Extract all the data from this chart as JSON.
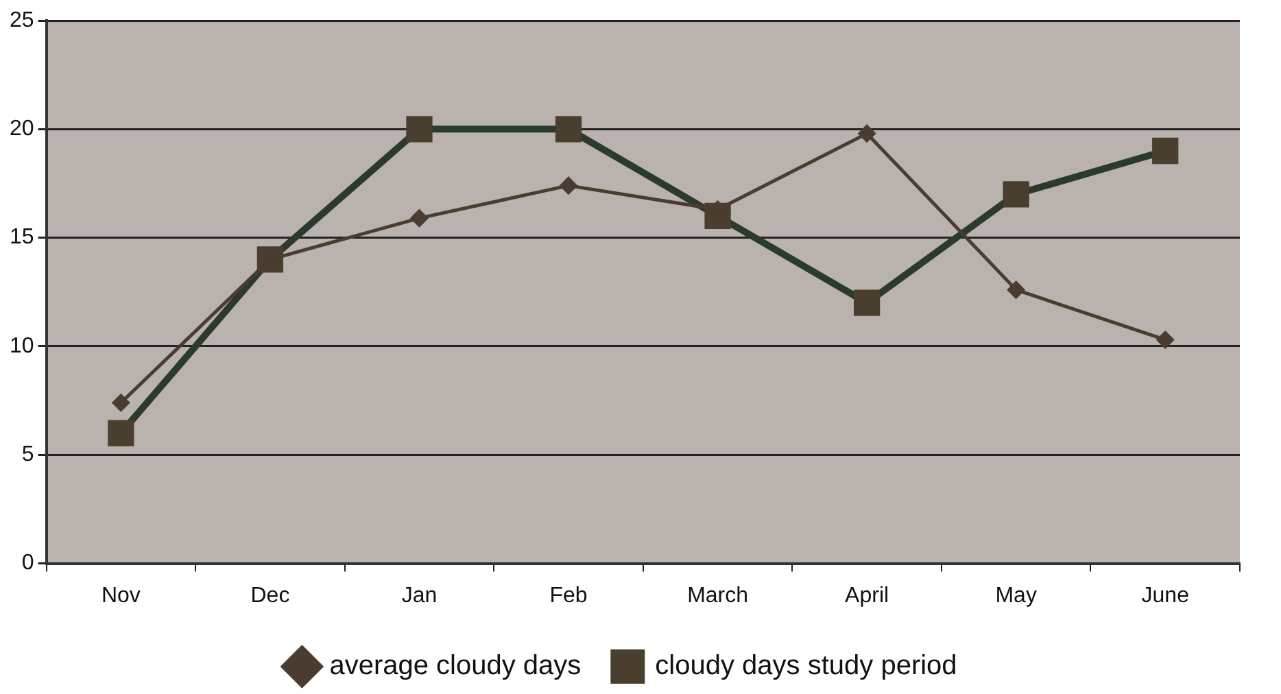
{
  "chart_data": {
    "type": "line",
    "categories": [
      "Nov",
      "Dec",
      "Jan",
      "Feb",
      "March",
      "April",
      "May",
      "June"
    ],
    "series": [
      {
        "name": "average cloudy days",
        "color": "#4a3c30",
        "marker": "diamond",
        "line_style": "solid",
        "values": [
          7.4,
          14,
          15.9,
          17.4,
          16.3,
          19.8,
          12.6,
          10.3
        ]
      },
      {
        "name": "cloudy days study period",
        "color": "#2a3a2c",
        "marker": "square",
        "line_style": "solid",
        "values": [
          6,
          14,
          20,
          20,
          16,
          12,
          17,
          19
        ]
      }
    ],
    "ylim": [
      0,
      25
    ],
    "yticks": [
      0,
      5,
      10,
      15,
      20,
      25
    ],
    "grid": "y",
    "legend": "bottom"
  }
}
